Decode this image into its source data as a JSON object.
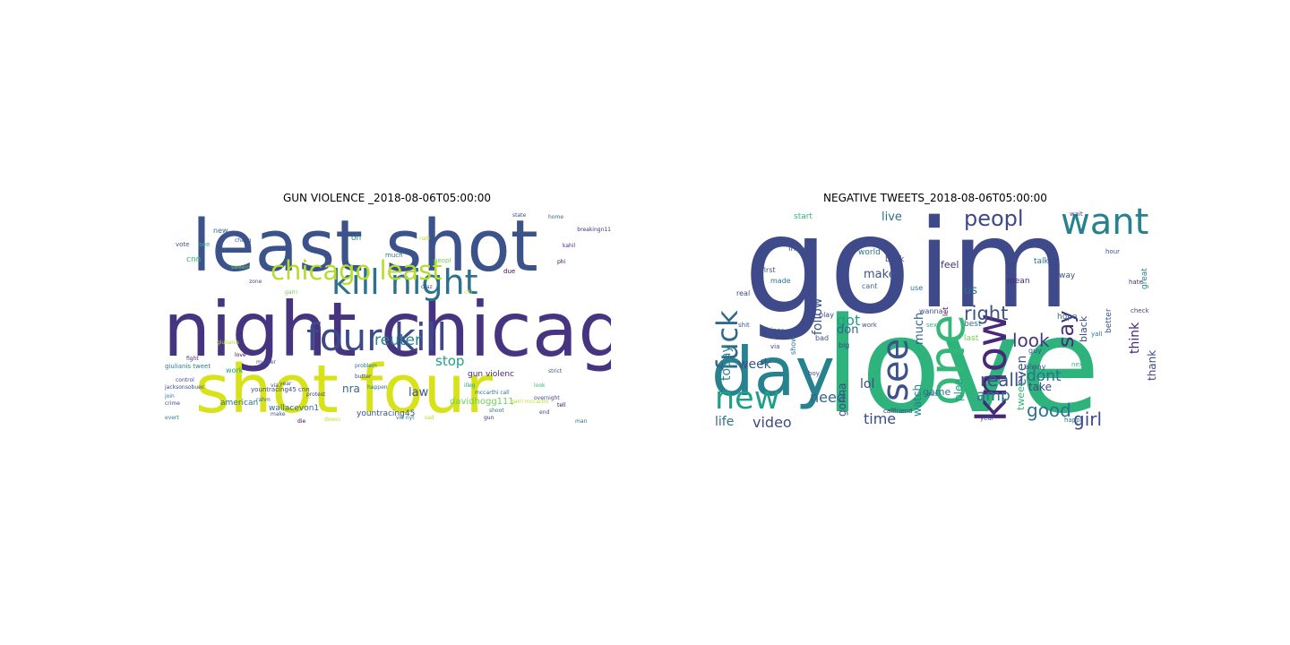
{
  "chart_data": [
    {
      "type": "wordcloud",
      "title": "GUN VIOLENCE _2018-08-06T05:00:00",
      "words": [
        {
          "text": "night chicago",
          "weight": 1.0,
          "color": "#463480"
        },
        {
          "text": "least shot",
          "weight": 0.95,
          "color": "#3b528b"
        },
        {
          "text": "shot four",
          "weight": 0.9,
          "color": "#d8e219"
        },
        {
          "text": "four kill",
          "weight": 0.55,
          "color": "#3e4989"
        },
        {
          "text": "kill night",
          "weight": 0.5,
          "color": "#2c728e"
        },
        {
          "text": "chicago least",
          "weight": 0.4,
          "color": "#b5de2b"
        },
        {
          "text": "reuter",
          "weight": 0.25,
          "color": "#25858e"
        },
        {
          "text": "stop",
          "weight": 0.22,
          "color": "#1f9e89"
        },
        {
          "text": "law",
          "weight": 0.2,
          "color": "#3b528b"
        },
        {
          "text": "nra",
          "weight": 0.18,
          "color": "#31688e"
        },
        {
          "text": "davidhogg111",
          "weight": 0.16,
          "color": "#6ece58"
        },
        {
          "text": "wallacevon1",
          "weight": 0.15,
          "color": "#31688e"
        },
        {
          "text": "yountracing45",
          "weight": 0.15,
          "color": "#3b528b"
        },
        {
          "text": "american",
          "weight": 0.14,
          "color": "#2c728e"
        },
        {
          "text": "gun violenc",
          "weight": 0.14,
          "color": "#482878"
        },
        {
          "text": "oh",
          "weight": 0.14,
          "color": "#26828e"
        },
        {
          "text": "cnn",
          "weight": 0.14,
          "color": "#35b779"
        },
        {
          "text": "work",
          "weight": 0.13,
          "color": "#1f9e89"
        },
        {
          "text": "new",
          "weight": 0.13,
          "color": "#31688e"
        },
        {
          "text": "vote",
          "weight": 0.12,
          "color": "#3b528b"
        },
        {
          "text": "see",
          "weight": 0.12,
          "color": "#35b779"
        },
        {
          "text": "giulianis tweet",
          "weight": 0.11,
          "color": "#26828e"
        },
        {
          "text": "yountracing45 cnn",
          "weight": 0.11,
          "color": "#3e4989"
        },
        {
          "text": "much",
          "weight": 0.11,
          "color": "#2c728e"
        },
        {
          "text": "peopl",
          "weight": 0.11,
          "color": "#6ece58"
        },
        {
          "text": "due",
          "weight": 0.11,
          "color": "#440154"
        },
        {
          "text": "state",
          "weight": 0.1,
          "color": "#3e4989"
        },
        {
          "text": "home",
          "weight": 0.1,
          "color": "#31688e"
        },
        {
          "text": "breakingn11",
          "weight": 0.1,
          "color": "#472d7b"
        },
        {
          "text": "protest",
          "weight": 0.1,
          "color": "#3e4989"
        },
        {
          "text": "happen",
          "weight": 0.1,
          "color": "#2c728e"
        },
        {
          "text": "mccarthi call",
          "weight": 0.1,
          "color": "#2c728e"
        },
        {
          "text": "garri mccarthi",
          "weight": 0.1,
          "color": "#b5de2b"
        },
        {
          "text": "rahm",
          "weight": 0.1,
          "color": "#31688e"
        },
        {
          "text": "sad",
          "weight": 0.1,
          "color": "#b5de2b"
        },
        {
          "text": "make",
          "weight": 0.09,
          "color": "#3b528b"
        },
        {
          "text": "doesn",
          "weight": 0.09,
          "color": "#b5de2b"
        },
        {
          "text": "die",
          "weight": 0.09,
          "color": "#440154"
        },
        {
          "text": "strict",
          "weight": 0.09,
          "color": "#3b528b"
        },
        {
          "text": "look",
          "weight": 0.09,
          "color": "#35b779"
        },
        {
          "text": "control",
          "weight": 0.09,
          "color": "#3e4989"
        },
        {
          "text": "via",
          "weight": 0.09,
          "color": "#3e4989"
        },
        {
          "text": "year",
          "weight": 0.09,
          "color": "#3b528b"
        },
        {
          "text": "shoot",
          "weight": 0.09,
          "color": "#2c728e"
        },
        {
          "text": "overnight",
          "weight": 0.09,
          "color": "#3e4989"
        },
        {
          "text": "tell",
          "weight": 0.09,
          "color": "#440154"
        },
        {
          "text": "fight",
          "weight": 0.08,
          "color": "#482878"
        },
        {
          "text": "jacksonsobuec",
          "weight": 0.08,
          "color": "#3e4989"
        },
        {
          "text": "crime",
          "weight": 0.08,
          "color": "#3e4989"
        },
        {
          "text": "sweein",
          "weight": 0.08,
          "color": "#6ece58"
        },
        {
          "text": "problem",
          "weight": 0.08,
          "color": "#2c728e"
        },
        {
          "text": "giulianis",
          "weight": 0.08,
          "color": "#b5de2b"
        },
        {
          "text": "rudi",
          "weight": 0.08,
          "color": "#b5de2b"
        },
        {
          "text": "kahil",
          "weight": 0.08,
          "color": "#482878"
        },
        {
          "text": "zone",
          "weight": 0.08,
          "color": "#3b528b"
        },
        {
          "text": "chang",
          "weight": 0.08,
          "color": "#3b528b"
        },
        {
          "text": "illeg",
          "weight": 0.08,
          "color": "#1f9e89"
        },
        {
          "text": "gun",
          "weight": 0.08,
          "color": "#482878"
        },
        {
          "text": "via nyt",
          "weight": 0.08,
          "color": "#2c728e"
        },
        {
          "text": "phi",
          "weight": 0.08,
          "color": "#440154"
        },
        {
          "text": "love",
          "weight": 0.08,
          "color": "#440154"
        },
        {
          "text": "join",
          "weight": 0.08,
          "color": "#2c728e"
        },
        {
          "text": "murder",
          "weight": 0.08,
          "color": "#3b528b"
        },
        {
          "text": "butter",
          "weight": 0.08,
          "color": "#3e4989"
        },
        {
          "text": "evert",
          "weight": 0.07,
          "color": "#26828e"
        },
        {
          "text": "citi",
          "weight": 0.07,
          "color": "#b5de2b"
        },
        {
          "text": "craz",
          "weight": 0.07,
          "color": "#3b528b"
        },
        {
          "text": "garri",
          "weight": 0.07,
          "color": "#6ece58"
        },
        {
          "text": "end",
          "weight": 0.07,
          "color": "#3e4989"
        },
        {
          "text": "man",
          "weight": 0.07,
          "color": "#31688e"
        }
      ]
    },
    {
      "type": "wordcloud",
      "title": "NEGATIVE TWEETS_2018-08-06T05:00:00",
      "words": [
        {
          "text": "go",
          "weight": 1.0,
          "color": "#3e4a89"
        },
        {
          "text": "love",
          "weight": 0.98,
          "color": "#2eb37c"
        },
        {
          "text": "im",
          "weight": 0.92,
          "color": "#3e4a89"
        },
        {
          "text": "day",
          "weight": 0.55,
          "color": "#26828e"
        },
        {
          "text": "one",
          "weight": 0.42,
          "color": "#35b779"
        },
        {
          "text": "know",
          "weight": 0.36,
          "color": "#482878"
        },
        {
          "text": "want",
          "weight": 0.32,
          "color": "#26828e"
        },
        {
          "text": "see",
          "weight": 0.32,
          "color": "#3b528b"
        },
        {
          "text": "new",
          "weight": 0.28,
          "color": "#1f9e89"
        },
        {
          "text": "fuck",
          "weight": 0.26,
          "color": "#31688e"
        },
        {
          "text": "peopl",
          "weight": 0.2,
          "color": "#3e4989"
        },
        {
          "text": "say",
          "weight": 0.2,
          "color": "#472d7b"
        },
        {
          "text": "right",
          "weight": 0.18,
          "color": "#3b528b"
        },
        {
          "text": "look",
          "weight": 0.17,
          "color": "#443983"
        },
        {
          "text": "good",
          "weight": 0.17,
          "color": "#2c728e"
        },
        {
          "text": "realli",
          "weight": 0.17,
          "color": "#3b528b"
        },
        {
          "text": "girl",
          "weight": 0.17,
          "color": "#3e4989"
        },
        {
          "text": "amp",
          "weight": 0.15,
          "color": "#2c728e"
        },
        {
          "text": "dont",
          "weight": 0.15,
          "color": "#2c728e"
        },
        {
          "text": "time",
          "weight": 0.14,
          "color": "#3e4989"
        },
        {
          "text": "need",
          "weight": 0.14,
          "color": "#31688e"
        },
        {
          "text": "video",
          "weight": 0.14,
          "color": "#3e4989"
        },
        {
          "text": "life",
          "weight": 0.13,
          "color": "#2c728e"
        },
        {
          "text": "got",
          "weight": 0.14,
          "color": "#1f9e89"
        },
        {
          "text": "lol",
          "weight": 0.13,
          "color": "#3e4989"
        },
        {
          "text": "week",
          "weight": 0.13,
          "color": "#3b528b"
        },
        {
          "text": "even",
          "weight": 0.13,
          "color": "#3b528b"
        },
        {
          "text": "think",
          "weight": 0.13,
          "color": "#482878"
        },
        {
          "text": "follow",
          "weight": 0.13,
          "color": "#3b528b"
        },
        {
          "text": "today",
          "weight": 0.13,
          "color": "#26828e"
        },
        {
          "text": "live",
          "weight": 0.12,
          "color": "#2c728e"
        },
        {
          "text": "don",
          "weight": 0.12,
          "color": "#31688e"
        },
        {
          "text": "make",
          "weight": 0.12,
          "color": "#3b528b"
        },
        {
          "text": "much",
          "weight": 0.12,
          "color": "#31688e"
        },
        {
          "text": "us",
          "weight": 0.12,
          "color": "#2c728e"
        },
        {
          "text": "gonna",
          "weight": 0.11,
          "color": "#3e4989"
        },
        {
          "text": "watch",
          "weight": 0.11,
          "color": "#26828e"
        },
        {
          "text": "plea",
          "weight": 0.11,
          "color": "#1f9e89"
        },
        {
          "text": "take",
          "weight": 0.11,
          "color": "#3e4989"
        },
        {
          "text": "thank",
          "weight": 0.11,
          "color": "#3e4989"
        },
        {
          "text": "game",
          "weight": 0.1,
          "color": "#2c728e"
        },
        {
          "text": "tweet",
          "weight": 0.1,
          "color": "#35b779"
        },
        {
          "text": "feel",
          "weight": 0.1,
          "color": "#472d7b"
        },
        {
          "text": "black",
          "weight": 0.1,
          "color": "#3e4989"
        },
        {
          "text": "better",
          "weight": 0.09,
          "color": "#3b528b"
        },
        {
          "text": "great",
          "weight": 0.09,
          "color": "#26828e"
        },
        {
          "text": "hope",
          "weight": 0.09,
          "color": "#2c728e"
        },
        {
          "text": "last",
          "weight": 0.09,
          "color": "#6ece58"
        },
        {
          "text": "best",
          "weight": 0.09,
          "color": "#2c728e"
        },
        {
          "text": "way",
          "weight": 0.09,
          "color": "#3b528b"
        },
        {
          "text": "mean",
          "weight": 0.09,
          "color": "#482878"
        },
        {
          "text": "talk",
          "weight": 0.09,
          "color": "#2c728e"
        },
        {
          "text": "back",
          "weight": 0.09,
          "color": "#3e4989"
        },
        {
          "text": "world",
          "weight": 0.09,
          "color": "#2c728e"
        },
        {
          "text": "start",
          "weight": 0.09,
          "color": "#35b779"
        },
        {
          "text": "first",
          "weight": 0.08,
          "color": "#3b528b"
        },
        {
          "text": "lmao",
          "weight": 0.09,
          "color": "#3b528b"
        },
        {
          "text": "real",
          "weight": 0.08,
          "color": "#3e4989"
        },
        {
          "text": "made",
          "weight": 0.08,
          "color": "#2c728e"
        },
        {
          "text": "let",
          "weight": 0.08,
          "color": "#440154"
        },
        {
          "text": "show",
          "weight": 0.08,
          "color": "#2c728e"
        },
        {
          "text": "play",
          "weight": 0.08,
          "color": "#3e4989"
        },
        {
          "text": "bad",
          "weight": 0.08,
          "color": "#3b528b"
        },
        {
          "text": "big",
          "weight": 0.08,
          "color": "#3e4989"
        },
        {
          "text": "cant",
          "weight": 0.08,
          "color": "#2c728e"
        },
        {
          "text": "use",
          "weight": 0.08,
          "color": "#2c728e"
        },
        {
          "text": "wanna",
          "weight": 0.08,
          "color": "#3b528b"
        },
        {
          "text": "ass",
          "weight": 0.08,
          "color": "#2c728e"
        },
        {
          "text": "guy",
          "weight": 0.08,
          "color": "#3b528b"
        },
        {
          "text": "friend",
          "weight": 0.07,
          "color": "#3e4989"
        },
        {
          "text": "call",
          "weight": 0.07,
          "color": "#482878"
        },
        {
          "text": "year",
          "weight": 0.07,
          "color": "#3b528b"
        },
        {
          "text": "happi",
          "weight": 0.07,
          "color": "#2c728e"
        },
        {
          "text": "next",
          "weight": 0.07,
          "color": "#35b779"
        },
        {
          "text": "hate",
          "weight": 0.07,
          "color": "#482878"
        },
        {
          "text": "yall",
          "weight": 0.07,
          "color": "#2c728e"
        },
        {
          "text": "nigga",
          "weight": 0.07,
          "color": "#3b528b"
        },
        {
          "text": "via",
          "weight": 0.07,
          "color": "#3e4989"
        },
        {
          "text": "shit",
          "weight": 0.07,
          "color": "#3b528b"
        },
        {
          "text": "boy",
          "weight": 0.07,
          "color": "#3e4989"
        },
        {
          "text": "work",
          "weight": 0.07,
          "color": "#3b528b"
        },
        {
          "text": "sex",
          "weight": 0.07,
          "color": "#35b779"
        },
        {
          "text": "wait",
          "weight": 0.06,
          "color": "#3e4989"
        },
        {
          "text": "hour",
          "weight": 0.06,
          "color": "#3b528b"
        },
        {
          "text": "check",
          "weight": 0.06,
          "color": "#3e4989"
        },
        {
          "text": "alway",
          "weight": 0.08,
          "color": "#3b528b"
        }
      ]
    }
  ]
}
